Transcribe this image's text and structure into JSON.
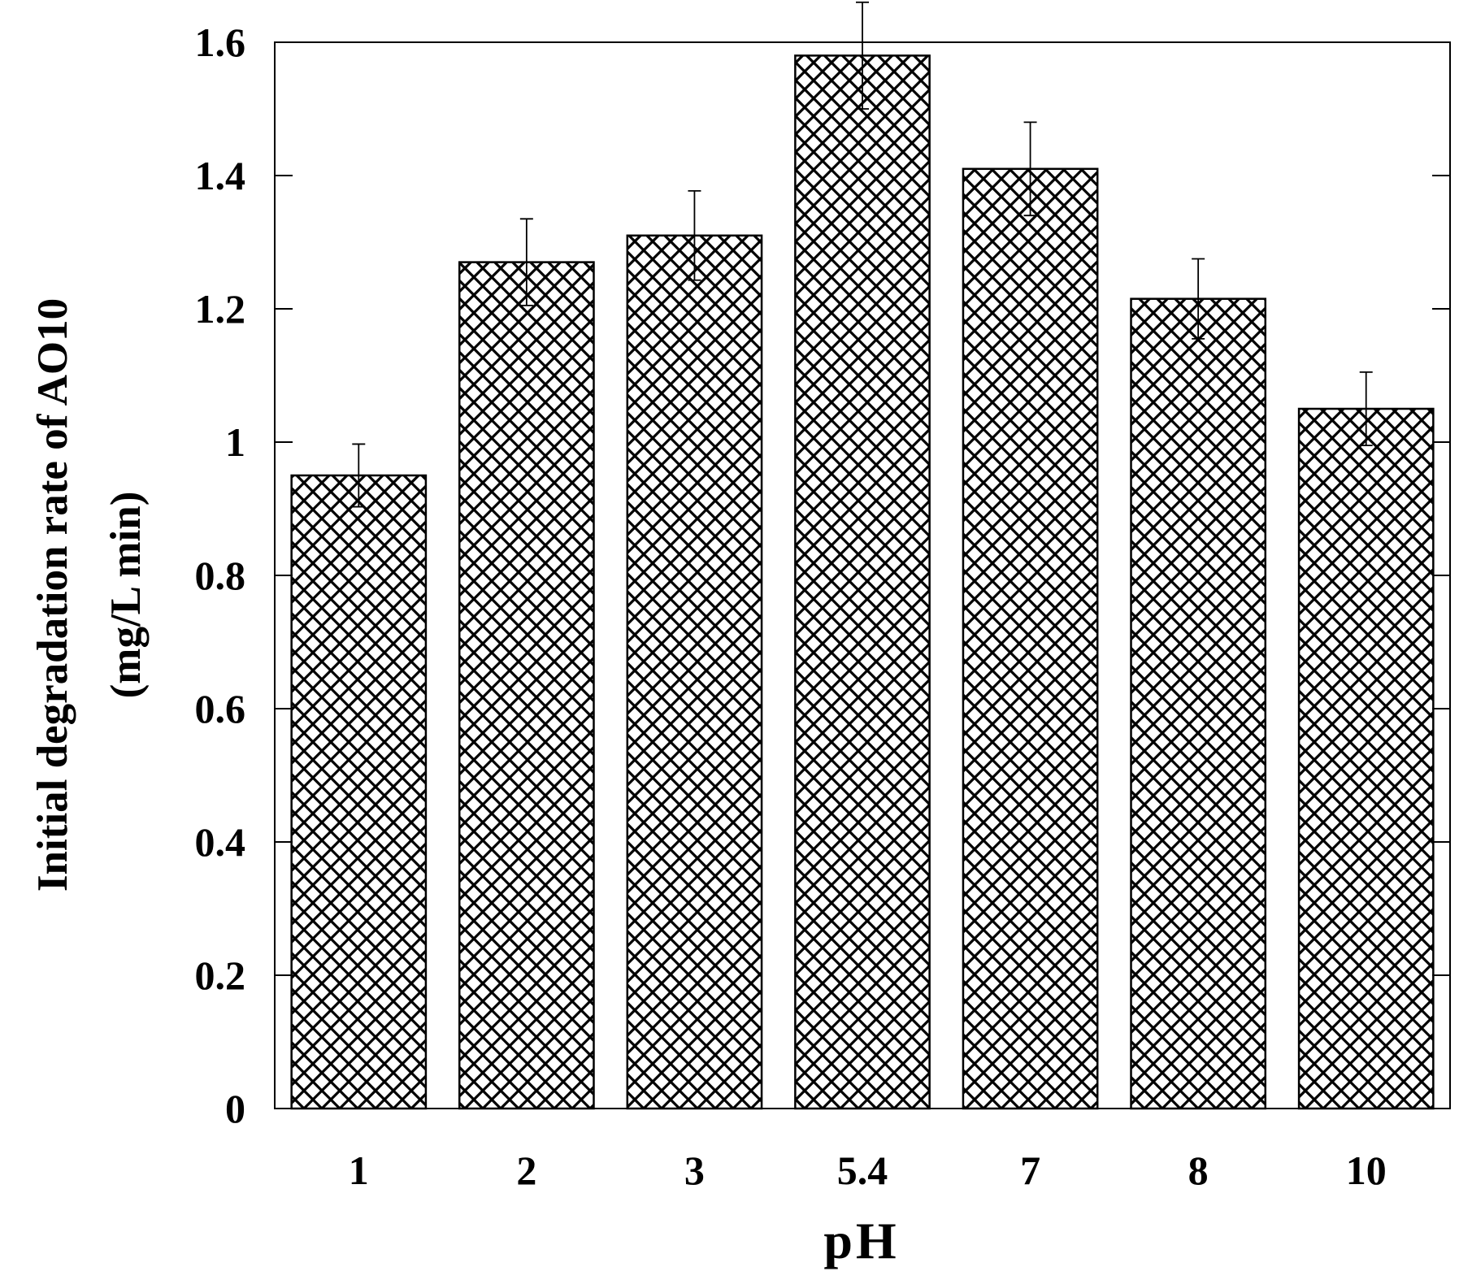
{
  "chart_data": {
    "type": "bar",
    "title": "",
    "categories": [
      "1",
      "2",
      "3",
      "5.4",
      "7",
      "8",
      "10"
    ],
    "values": [
      0.95,
      1.27,
      1.31,
      1.58,
      1.41,
      1.215,
      1.05
    ],
    "error": [
      0.047,
      0.065,
      0.067,
      0.08,
      0.07,
      0.06,
      0.055
    ],
    "xlabel": "pH",
    "ylabel_line1": "Initial degradation rate of AO10",
    "ylabel_line2": "(mg/L min)",
    "ylim": [
      0,
      1.6
    ],
    "yticks": [
      0,
      0.2,
      0.4,
      0.6,
      0.8,
      1,
      1.2,
      1.4,
      1.6
    ],
    "ytick_labels": [
      "0",
      "0.2",
      "0.4",
      "0.6",
      "0.8",
      "1",
      "1.2",
      "1.4",
      "1.6"
    ],
    "bar_pattern": "crosshatch",
    "bar_color": "#000000",
    "grid": false,
    "legend": "none"
  }
}
